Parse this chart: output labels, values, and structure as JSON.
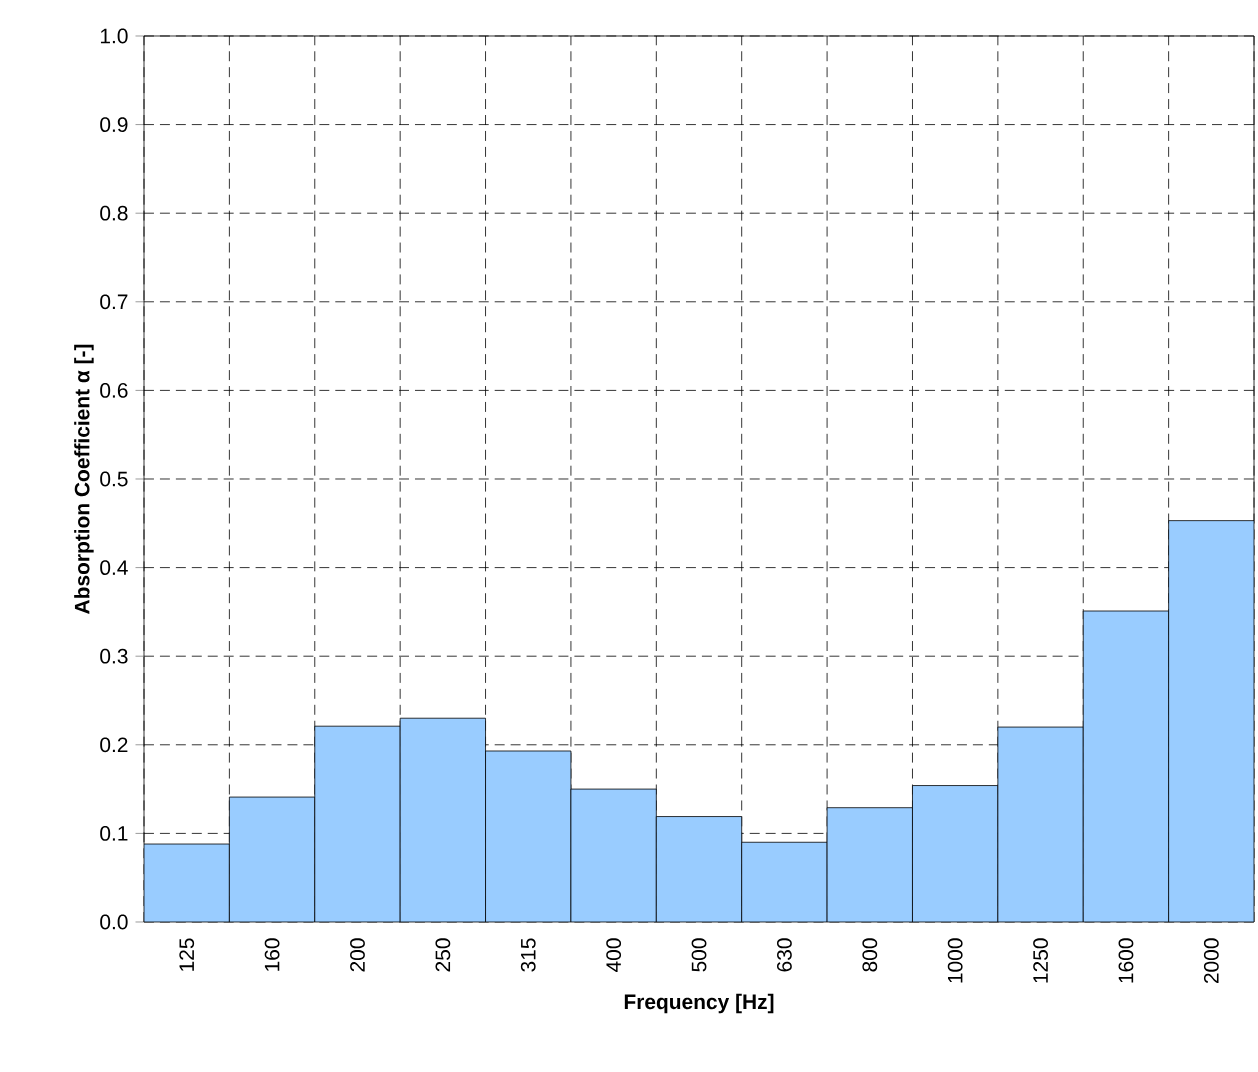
{
  "chart_data": {
    "type": "bar",
    "xlabel": "Frequency [Hz]",
    "ylabel": "Absorption Coefficient α [-]",
    "categories": [
      "125",
      "160",
      "200",
      "250",
      "315",
      "400",
      "500",
      "630",
      "800",
      "1000",
      "1250",
      "1600",
      "2000"
    ],
    "values": [
      0.088,
      0.141,
      0.221,
      0.23,
      0.193,
      0.15,
      0.119,
      0.09,
      0.129,
      0.154,
      0.22,
      0.351,
      0.453
    ],
    "color": "#99ccff",
    "ylim": [
      0,
      1
    ],
    "yticks": [
      {
        "value": 0,
        "label": "0.0"
      },
      {
        "value": 0.1,
        "label": "0.1"
      },
      {
        "value": 0.2,
        "label": "0.2"
      },
      {
        "value": 0.3,
        "label": "0.3"
      },
      {
        "value": 0.4,
        "label": "0.4"
      },
      {
        "value": 0.5,
        "label": "0.5"
      },
      {
        "value": 0.6,
        "label": "0.6"
      },
      {
        "value": 0.7,
        "label": "0.7"
      },
      {
        "value": 0.8,
        "label": "0.8"
      },
      {
        "value": 0.9,
        "label": "0.9"
      },
      {
        "value": 1,
        "label": "1.0"
      }
    ],
    "grid": true
  }
}
